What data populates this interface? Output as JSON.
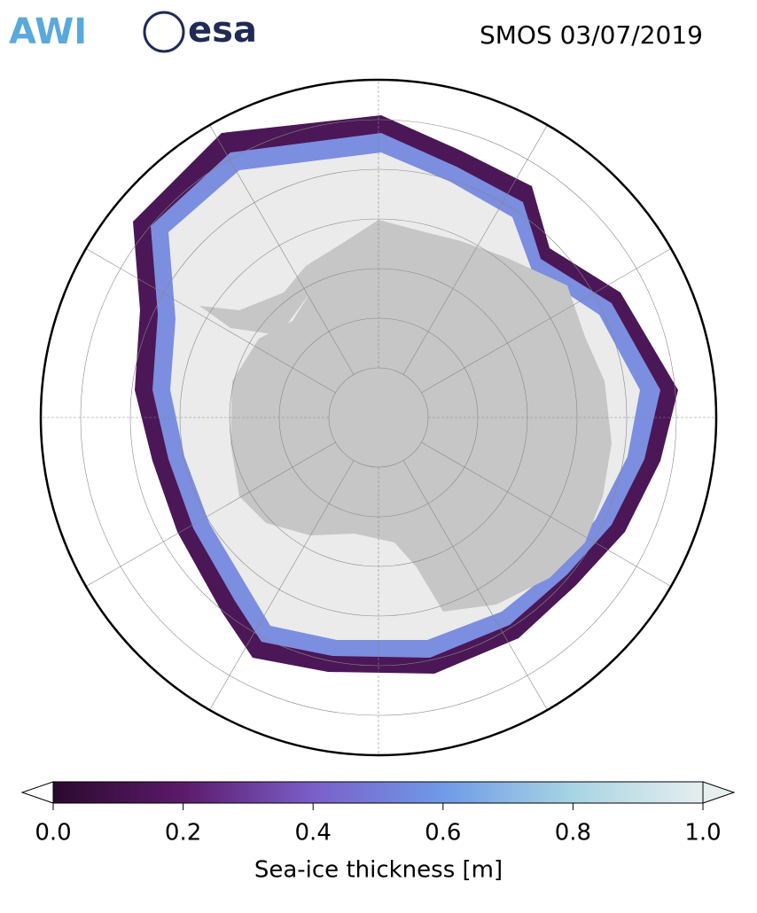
{
  "header": {
    "logos": [
      "AWI",
      "esa"
    ],
    "title": "SMOS 03/07/2019"
  },
  "colorbar": {
    "label": "Sea-ice thickness [m]",
    "lim": [
      0,
      1
    ],
    "ticks": [
      {
        "value": 0,
        "label": "0.0"
      },
      0.2,
      0.4,
      0.6,
      0.8,
      {
        "value": 1,
        "label": "1.0"
      }
    ],
    "colors": [
      "#2a0a2e",
      "#5b1a6a",
      "#7a5fc8",
      "#6f9ae6",
      "#a8d4e4",
      "#e6eeee"
    ]
  }
}
